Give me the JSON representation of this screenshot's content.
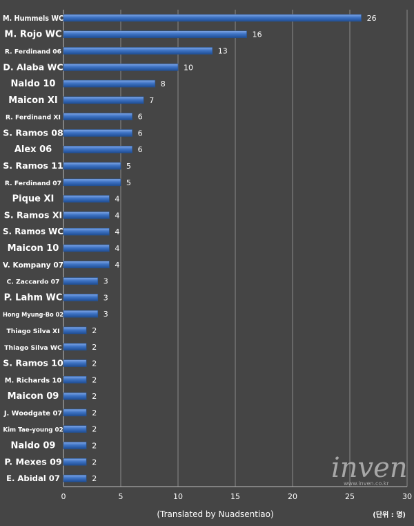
{
  "chart_data": {
    "type": "bar",
    "orientation": "horizontal",
    "categories": [
      "M. Hummels WC",
      "M. Rojo WC",
      "R. Ferdinand 06",
      "D. Alaba WC",
      "Naldo 10",
      "Maicon XI",
      "R. Ferdinand XI",
      "S. Ramos 08",
      "Alex 06",
      "S. Ramos 11",
      "R. Ferdinand 07",
      "Pique XI",
      "S. Ramos XI",
      "S. Ramos WC",
      "Maicon 10",
      "V. Kompany 07",
      "C.  Zaccardo 07",
      "P. Lahm WC",
      "Hong Myung-Bo 02",
      "Thiago Silva XI",
      "Thiago Silva WC",
      "S. Ramos 10",
      "M. Richards 10",
      "Maicon 09",
      "J. Woodgate 07",
      "Kim Tae-young 02",
      "Naldo 09",
      "P. Mexes 09",
      "E. Abidal 07"
    ],
    "values": [
      26,
      16,
      13,
      10,
      8,
      7,
      6,
      6,
      6,
      5,
      5,
      4,
      4,
      4,
      4,
      4,
      3,
      3,
      3,
      2,
      2,
      2,
      2,
      2,
      2,
      2,
      2,
      2,
      2
    ],
    "x_ticks": [
      "0",
      "5",
      "10",
      "15",
      "20",
      "25",
      "30"
    ],
    "xlim": [
      0,
      30
    ],
    "grid": true,
    "bar_color": "#3e73c4",
    "xlabel": "",
    "ylabel": ""
  },
  "credit": "(Translated by Nuadsentiao)",
  "unit_label": "(단위 : 명)",
  "watermark": {
    "logo": "inven",
    "url": "www.inven.co.kr"
  }
}
